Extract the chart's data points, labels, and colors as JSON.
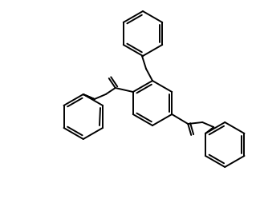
{
  "bg": "#ffffff",
  "lw": 1.3,
  "lw2": 1.3,
  "figw": 3.24,
  "figh": 2.49,
  "dpi": 100
}
